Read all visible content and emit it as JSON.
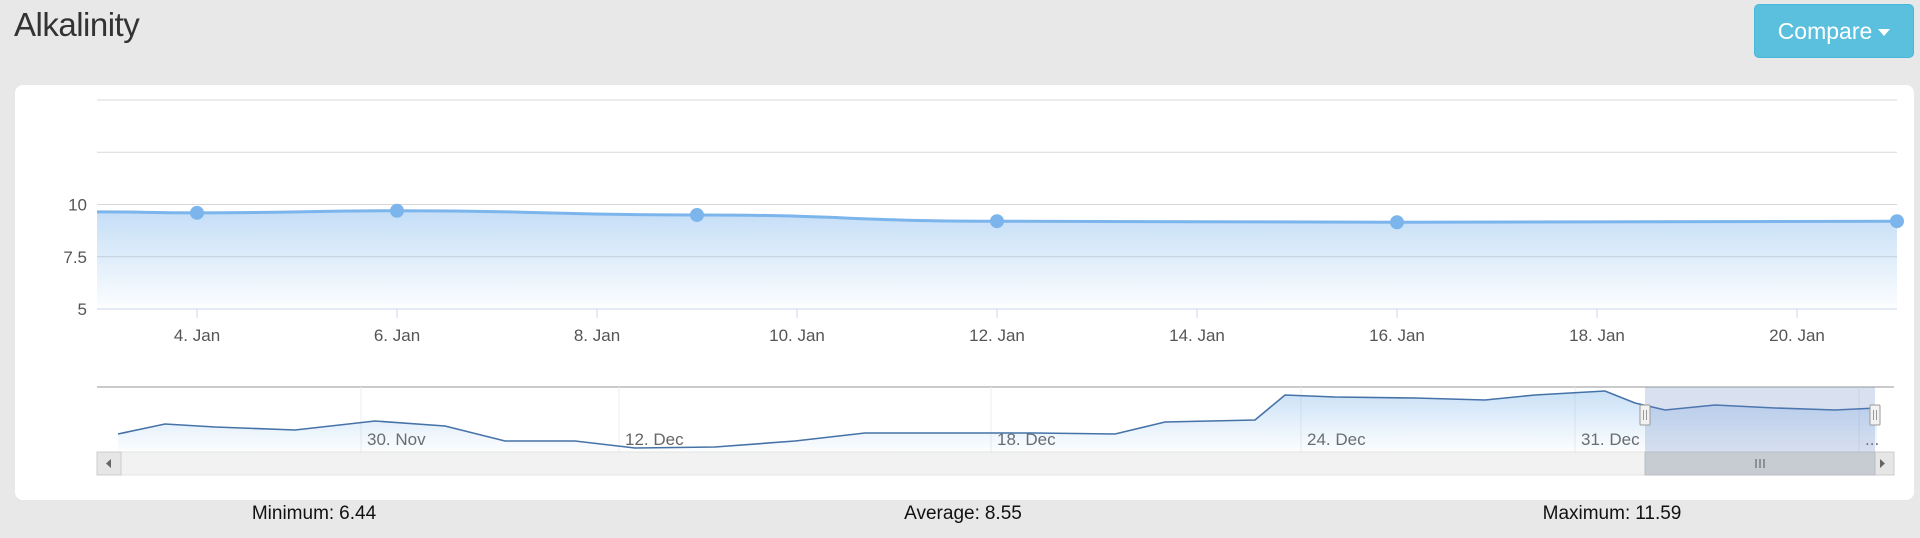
{
  "page": {
    "title": "Alkalinity"
  },
  "toolbar": {
    "compare_label": "Compare",
    "compare_icon": "caret-down-icon"
  },
  "colors": {
    "series": "#7cb5ec",
    "navigator_line": "#4572a7",
    "button_bg": "#5bc0de",
    "background": "#e8e8e8",
    "card": "#ffffff"
  },
  "chart_data": {
    "type": "area",
    "title": "",
    "xlabel": "",
    "ylabel": "",
    "ylim": [
      5,
      15
    ],
    "yticks": [
      "5",
      "7.5",
      "10"
    ],
    "xticks": [
      "4. Jan",
      "6. Jan",
      "8. Jan",
      "10. Jan",
      "12. Jan",
      "14. Jan",
      "16. Jan",
      "18. Jan",
      "20. Jan"
    ],
    "xrange": [
      "2025-01-03",
      "2025-01-21"
    ],
    "grid": true,
    "legend": "none",
    "series": [
      {
        "x": [
          "2025-01-04",
          "2025-01-06",
          "2025-01-09",
          "2025-01-12",
          "2025-01-16",
          "2025-01-21"
        ],
        "values": [
          9.6,
          9.7,
          9.5,
          9.2,
          9.15,
          9.2
        ]
      }
    ],
    "navigator": {
      "xticks": [
        "30. Nov",
        "12. Dec",
        "18. Dec",
        "24. Dec",
        "31. Dec",
        "..."
      ],
      "selection": [
        "2025-01-03",
        "2025-01-21"
      ]
    }
  },
  "stats": {
    "minimum_label": "Minimum:",
    "minimum_value": "6.44",
    "average_label": "Average:",
    "average_value": "8.55",
    "maximum_label": "Maximum:",
    "maximum_value": "11.59"
  }
}
